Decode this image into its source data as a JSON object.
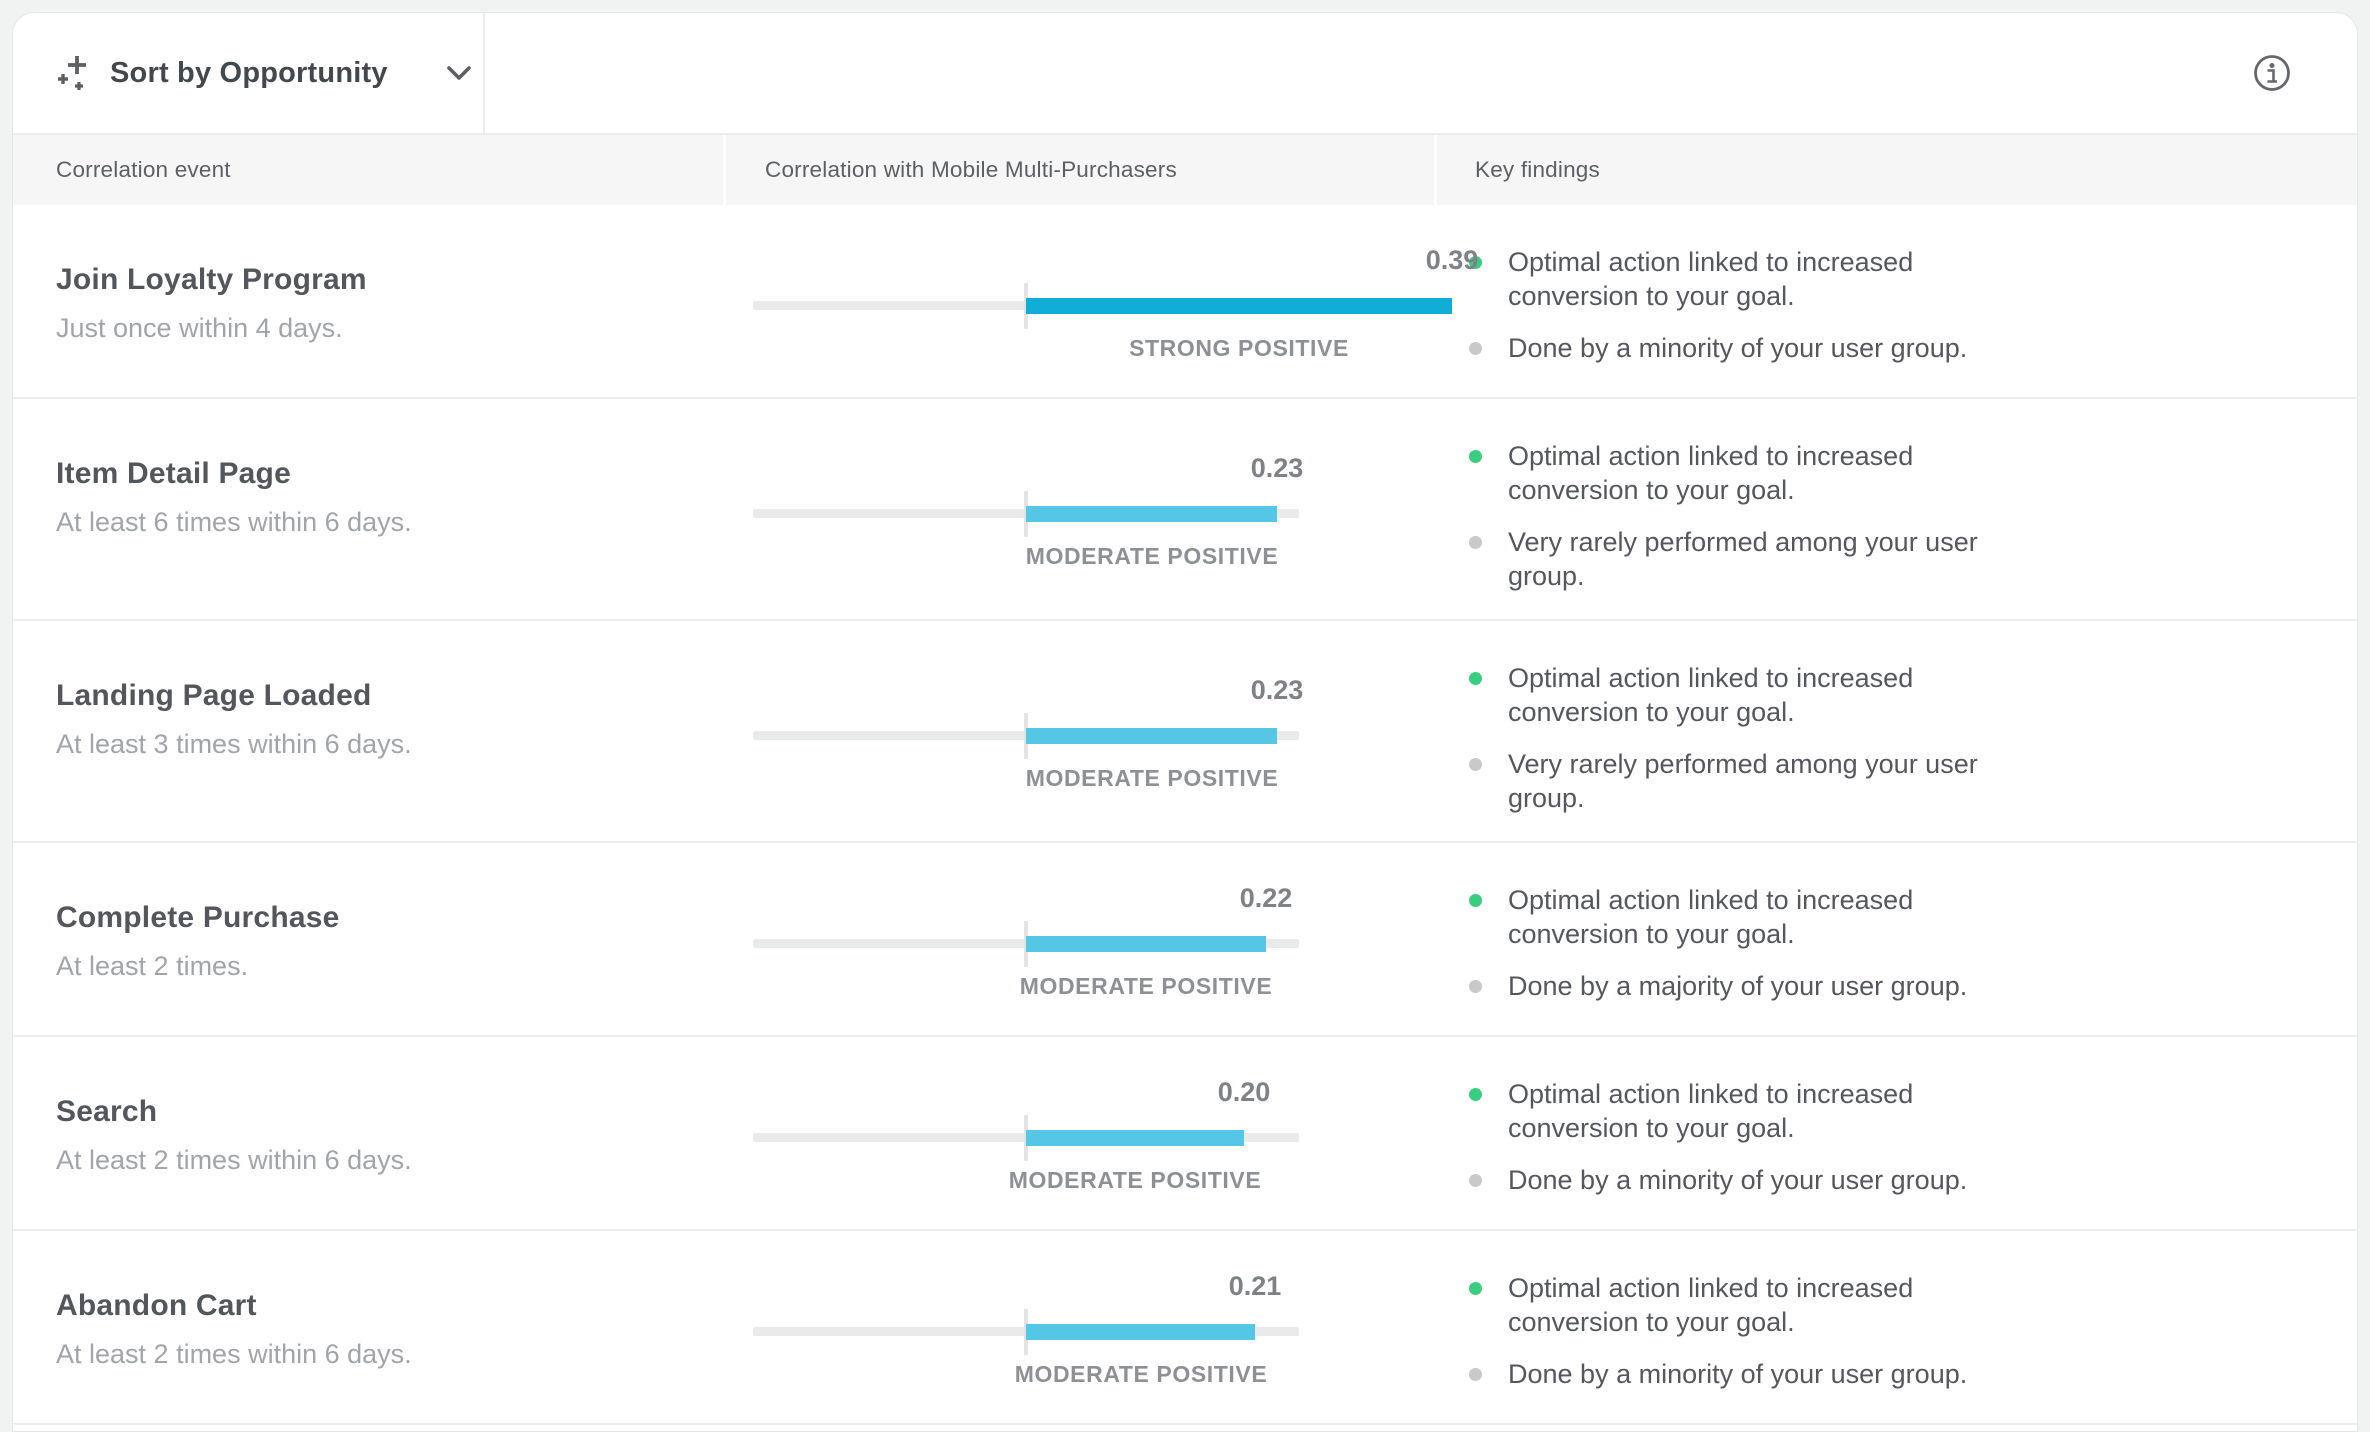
{
  "toolbar": {
    "sort_label": "Sort by Opportunity",
    "icons": {
      "sort": "sparkle-plus-icon",
      "dropdown": "chevron-down-icon",
      "info": "info-circle-icon"
    }
  },
  "table": {
    "columns": [
      "Correlation event",
      "Correlation with Mobile Multi-Purchasers",
      "Key findings"
    ],
    "rows": [
      {
        "event": "Join Loyalty Program",
        "criteria": "Just once within 4 days.",
        "value": "0.39",
        "value_num": 0.39,
        "strength": "STRONG POSITIVE",
        "bar_color": "#10AED6",
        "findings": [
          {
            "dot": "green",
            "dot_color": "#3BCD7F",
            "text": "Optimal action linked to increased conversion to your goal."
          },
          {
            "dot": "gray",
            "dot_color": "#C7C9CB",
            "text": "Done by a minority of your user group."
          }
        ]
      },
      {
        "event": "Item Detail Page",
        "criteria": "At least 6 times within 6 days.",
        "value": "0.23",
        "value_num": 0.23,
        "strength": "MODERATE POSITIVE",
        "bar_color": "#55C6E6",
        "findings": [
          {
            "dot": "green",
            "dot_color": "#3BCD7F",
            "text": "Optimal action linked to increased conversion to your goal."
          },
          {
            "dot": "gray",
            "dot_color": "#C7C9CB",
            "text": "Very rarely performed among your user group."
          }
        ]
      },
      {
        "event": "Landing Page Loaded",
        "criteria": "At least 3 times within 6 days.",
        "value": "0.23",
        "value_num": 0.23,
        "strength": "MODERATE POSITIVE",
        "bar_color": "#55C6E6",
        "findings": [
          {
            "dot": "green",
            "dot_color": "#3BCD7F",
            "text": "Optimal action linked to increased conversion to your goal."
          },
          {
            "dot": "gray",
            "dot_color": "#C7C9CB",
            "text": "Very rarely performed among your user group."
          }
        ]
      },
      {
        "event": "Complete Purchase",
        "criteria": "At least 2 times.",
        "value": "0.22",
        "value_num": 0.22,
        "strength": "MODERATE POSITIVE",
        "bar_color": "#55C6E6",
        "findings": [
          {
            "dot": "green",
            "dot_color": "#3BCD7F",
            "text": "Optimal action linked to increased conversion to your goal."
          },
          {
            "dot": "gray",
            "dot_color": "#C7C9CB",
            "text": "Done by a majority of your user group."
          }
        ]
      },
      {
        "event": "Search",
        "criteria": "At least 2 times within 6 days.",
        "value": "0.20",
        "value_num": 0.2,
        "strength": "MODERATE POSITIVE",
        "bar_color": "#55C6E6",
        "findings": [
          {
            "dot": "green",
            "dot_color": "#3BCD7F",
            "text": "Optimal action linked to increased conversion to your goal."
          },
          {
            "dot": "gray",
            "dot_color": "#C7C9CB",
            "text": "Done by a minority of your user group."
          }
        ]
      },
      {
        "event": "Abandon Cart",
        "criteria": "At least 2 times within 6 days.",
        "value": "0.21",
        "value_num": 0.21,
        "strength": "MODERATE POSITIVE",
        "bar_color": "#55C6E6",
        "findings": [
          {
            "dot": "green",
            "dot_color": "#3BCD7F",
            "text": "Optimal action linked to increased conversion to your goal."
          },
          {
            "dot": "gray",
            "dot_color": "#C7C9CB",
            "text": "Done by a minority of your user group."
          }
        ]
      }
    ]
  },
  "colors": {
    "strong_positive_bar": "#10AED6",
    "moderate_positive_bar": "#55C6E6",
    "green_dot": "#3BCD7F",
    "gray_dot": "#C7C9CB",
    "track": "#E9EAEA"
  }
}
